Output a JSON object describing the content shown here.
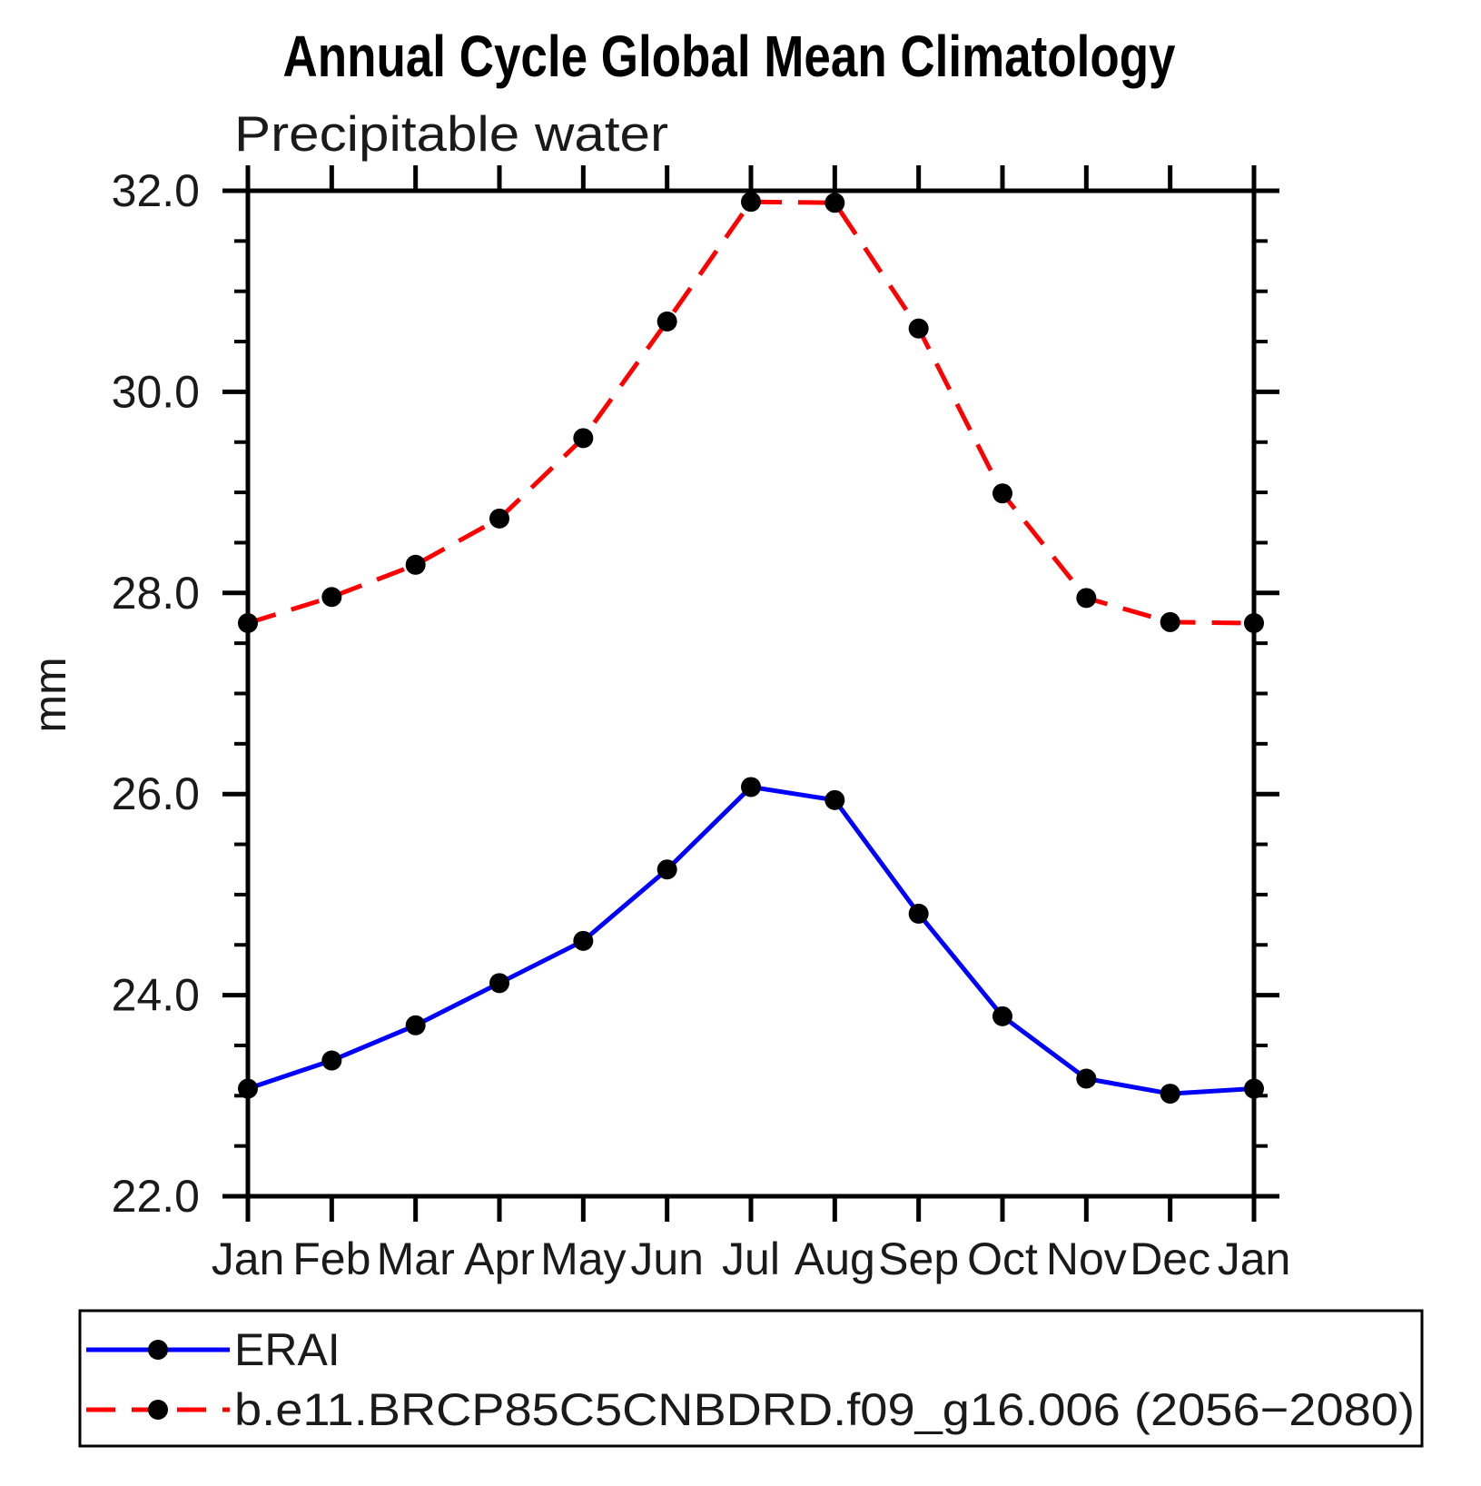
{
  "page": {
    "background_color": "#ffffff",
    "text_color": "#000000"
  },
  "chart_data": {
    "type": "line",
    "title": "Annual Cycle Global Mean Climatology",
    "subtitle": "Precipitable water",
    "ylabel": "mm",
    "xlabel": "",
    "categories": [
      "Jan",
      "Feb",
      "Mar",
      "Apr",
      "May",
      "Jun",
      "Jul",
      "Aug",
      "Sep",
      "Oct",
      "Nov",
      "Dec",
      "Jan"
    ],
    "ylim": [
      22.0,
      32.0
    ],
    "y_major_ticks": [
      22.0,
      24.0,
      26.0,
      28.0,
      30.0,
      32.0
    ],
    "y_major_tick_labels": [
      "22.0",
      "24.0",
      "26.0",
      "28.0",
      "30.0",
      "32.0"
    ],
    "y_minor_tick_step": 0.5,
    "grid": false,
    "legend_position": "bottom-left-box",
    "series": [
      {
        "name": "ERAI",
        "line_color": "#0000ff",
        "line_style": "solid",
        "marker": "filled-circle",
        "marker_color": "#000000",
        "values": [
          23.07,
          23.35,
          23.7,
          24.12,
          24.54,
          25.25,
          26.07,
          25.94,
          24.81,
          23.79,
          23.17,
          23.02,
          23.07
        ]
      },
      {
        "name": "b.e11.BRCP85C5CNBDRD.f09_g16.006 (2056−2080)",
        "line_color": "#ff0000",
        "line_style": "dashed",
        "marker": "filled-circle",
        "marker_color": "#000000",
        "values": [
          27.7,
          27.96,
          28.28,
          28.74,
          29.54,
          30.7,
          31.89,
          31.88,
          30.63,
          28.99,
          27.95,
          27.71,
          27.7
        ]
      }
    ]
  }
}
